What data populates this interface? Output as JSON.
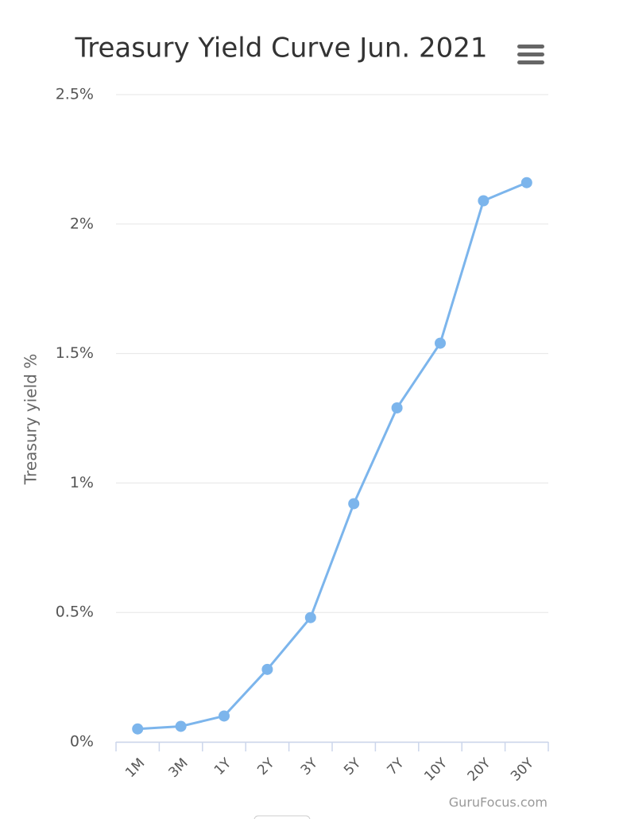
{
  "chart_data": {
    "type": "line",
    "title": "Treasury Yield Curve Jun. 2021",
    "y_label": "Treasury yield %",
    "credits": "GuruFocus.com",
    "categories": [
      "1M",
      "3M",
      "1Y",
      "2Y",
      "3Y",
      "5Y",
      "7Y",
      "10Y",
      "20Y",
      "30Y"
    ],
    "values": [
      0.05,
      0.06,
      0.1,
      0.28,
      0.48,
      0.92,
      1.29,
      1.54,
      2.09,
      2.16
    ],
    "color": "#7cb5ec",
    "ylim": [
      0,
      2.5
    ],
    "yticks": [
      {
        "value": 0,
        "label": "0%"
      },
      {
        "value": 0.5,
        "label": "0.5%"
      },
      {
        "value": 1,
        "label": "1%"
      },
      {
        "value": 1.5,
        "label": "1.5%"
      },
      {
        "value": 2,
        "label": "2%"
      },
      {
        "value": 2.5,
        "label": "2.5%"
      }
    ],
    "grid": true
  }
}
